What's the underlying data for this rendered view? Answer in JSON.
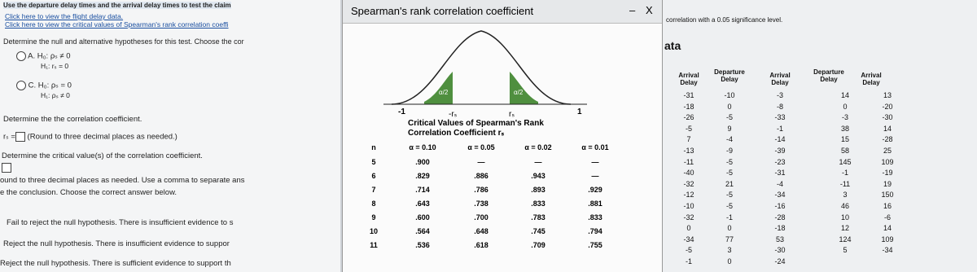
{
  "question": {
    "intro": "Use the departure delay times and the arrival delay times to test the claim",
    "links": [
      "Click here to view the flight delay data.",
      "Click here to view the critical values of Spearman's rank correlation coeffi"
    ],
    "hypothesis_prompt": "Determine the null and alternative hypotheses for this test. Choose the cor",
    "options": [
      {
        "letter": "A.",
        "h0": "H₀: ρₛ ≠ 0",
        "h1": "H₁: rₛ = 0"
      },
      {
        "letter": "C.",
        "h0": "H₀: ρₛ = 0",
        "h1": "H₁: ρₛ ≠ 0"
      }
    ],
    "coef_prompt": "Determine the the correlation coefficient.",
    "coef_label": "rₛ =",
    "coef_hint": "(Round to three decimal places as needed.)",
    "critical_prompt": "Determine the critical value(s) of the correlation coefficient.",
    "critical_hint": "ound to three decimal places as needed. Use a comma to separate ans",
    "conclusion_prompt": "e the conclusion. Choose the correct answer below.",
    "conclusions": [
      "Fail to reject the null hypothesis. There is insufficient evidence to s",
      "Reject the null hypothesis. There is insufficient evidence to suppor",
      "Reject the null hypothesis. There is sufficient evidence to support th"
    ]
  },
  "popup": {
    "title": "Spearman's rank correlation coefficient",
    "buttons": [
      "–",
      "X"
    ],
    "curve_labels": {
      "left_tail": "α/2",
      "right_tail": "α/2",
      "minus_one": "-1",
      "minus_r": "-rₛ",
      "r": "rₛ",
      "one": "1"
    },
    "table_title": [
      "Critical Values of Spearman's Rank",
      "Correlation Coefficient rₛ"
    ],
    "columns": [
      "n",
      "α = 0.10",
      "α = 0.05",
      "α = 0.02",
      "α = 0.01"
    ],
    "rows": [
      [
        "5",
        ".900",
        "—",
        "—",
        "—"
      ],
      [
        "6",
        ".829",
        ".886",
        ".943",
        "—"
      ],
      [
        "7",
        ".714",
        ".786",
        ".893",
        ".929"
      ],
      [
        "8",
        ".643",
        ".738",
        ".833",
        ".881"
      ],
      [
        "9",
        ".600",
        ".700",
        ".783",
        ".833"
      ],
      [
        "10",
        ".564",
        ".648",
        ".745",
        ".794"
      ],
      [
        "11",
        ".536",
        ".618",
        ".709",
        ".755"
      ]
    ]
  },
  "data_panel": {
    "note": "correlation with a 0.05 significance level.",
    "heading": "ata",
    "columns": [
      {
        "name": "Arrival Delay",
        "values": [
          "-31",
          "-18",
          "-26",
          "-5",
          "7",
          "-13",
          "-11",
          "-40",
          "-32",
          "-12",
          "-10",
          "-32",
          "0",
          "-34",
          "-5",
          "-1"
        ]
      },
      {
        "name": "Departure Delay",
        "values": [
          "-10",
          "0",
          "-5",
          "9",
          "-4",
          "-9",
          "-5",
          "-5",
          "21",
          "-5",
          "-5",
          "-1",
          "0",
          "77",
          "3",
          "0"
        ]
      },
      {
        "name": "Arrival Delay",
        "values": [
          "-3",
          "-8",
          "-33",
          "-1",
          "-14",
          "-39",
          "-23",
          "-31",
          "-4",
          "-34",
          "-16",
          "-28",
          "-18",
          "53",
          "-30",
          "-24"
        ]
      },
      {
        "name": "Departure Delay",
        "values": [
          "14",
          "0",
          "-3",
          "38",
          "15",
          "58",
          "145",
          "-1",
          "-11",
          "3",
          "46",
          "10",
          "12",
          "124",
          "5"
        ]
      },
      {
        "name": "Arrival Delay",
        "values": [
          "13",
          "-20",
          "-30",
          "14",
          "-28",
          "25",
          "109",
          "-19",
          "19",
          "150",
          "16",
          "-6",
          "14",
          "109",
          "-34"
        ]
      }
    ]
  }
}
